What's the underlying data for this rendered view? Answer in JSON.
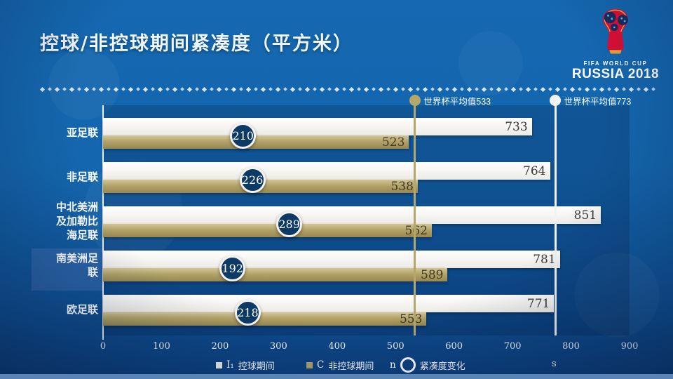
{
  "slide": {
    "title": "控球/非控球期间紧凑度（平方米）",
    "logo": {
      "fifa_line": "FIFA WORLD CUP",
      "russia_line": "RUSSIA 2018"
    },
    "colors": {
      "background": "#1466ad",
      "possession_bar": "#f5f3ee",
      "non_possession_bar": "#b3a369",
      "marker_circle": "#0d3a64",
      "gold_reference_line": "#b4a76b",
      "white_reference_line": "#f2f2f2"
    }
  },
  "chart_data": {
    "type": "bar",
    "orientation": "horizontal",
    "title": "控球/非控球期间紧凑度（平方米）",
    "categories": [
      "亚足联",
      "非足联",
      "中北美洲及加勒比海足联",
      "南美洲足联",
      "欧足联"
    ],
    "series": [
      {
        "name": "控球期间",
        "color": "#f5f3ee",
        "values": [
          733,
          764,
          851,
          781,
          771
        ]
      },
      {
        "name": "非控球期间",
        "color": "#b3a369",
        "values": [
          523,
          538,
          562,
          589,
          553
        ]
      }
    ],
    "markers": {
      "name": "紧凑度变化",
      "values": [
        210,
        226,
        289,
        192,
        218
      ]
    },
    "reference_lines": [
      {
        "label": "世界杯平均值533",
        "value": 533,
        "color": "#b4a76b"
      },
      {
        "label": "世界杯平均值773",
        "value": 773,
        "color": "#f2f2f2"
      }
    ],
    "xlim": [
      0,
      900
    ],
    "x_ticks": [
      0,
      100,
      200,
      300,
      400,
      500,
      600,
      700,
      800,
      900
    ],
    "highlighted_category": "南美洲足联",
    "legend_position": "bottom",
    "grid": false
  },
  "legend": {
    "items": [
      {
        "prefix": "I₁",
        "label": "控球期间",
        "swatch": "square-white"
      },
      {
        "prefix": "C",
        "label": "非控球期间",
        "swatch": "square-gold"
      },
      {
        "prefix": "n",
        "label": "紧凑度变化",
        "swatch": "ring"
      }
    ],
    "stray_text": "s"
  }
}
